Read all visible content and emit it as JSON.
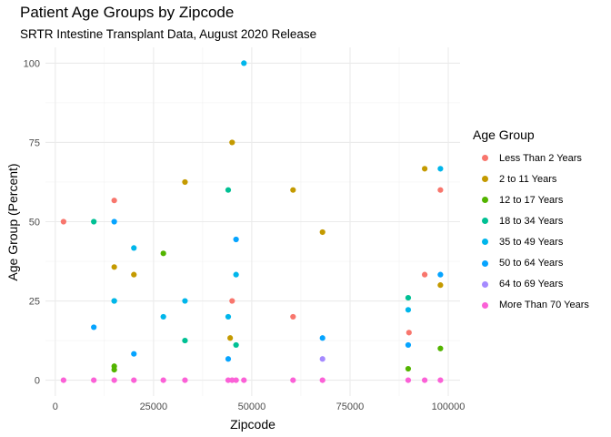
{
  "chart_data": {
    "type": "scatter",
    "title": "Patient Age Groups by Zipcode",
    "subtitle": "SRTR Intestine Transplant Data, August 2020 Release",
    "xlabel": "Zipcode",
    "ylabel": "Age Group (Percent)",
    "xlim": [
      0,
      100000
    ],
    "ylim": [
      0,
      100
    ],
    "x_ticks": [
      0,
      25000,
      50000,
      75000,
      100000
    ],
    "x_tick_labels": [
      "0",
      "25000",
      "50000",
      "75000",
      "100000"
    ],
    "y_ticks": [
      0,
      25,
      50,
      75,
      100
    ],
    "y_tick_labels": [
      "0",
      "25",
      "50",
      "75",
      "100"
    ],
    "grid": true,
    "legend_title": "Age Group",
    "legend_position": "right",
    "series": [
      {
        "name": "Less Than 2 Years",
        "color": "#F8766D",
        "points": [
          [
            2100,
            50
          ],
          [
            15000,
            56.7
          ],
          [
            45000,
            25
          ],
          [
            60500,
            20
          ],
          [
            90000,
            15
          ],
          [
            94000,
            33.3
          ],
          [
            98000,
            60
          ]
        ]
      },
      {
        "name": "2 to 11 Years",
        "color": "#C49A00",
        "points": [
          [
            15000,
            35.7
          ],
          [
            20000,
            33.3
          ],
          [
            33000,
            62.5
          ],
          [
            44500,
            13.3
          ],
          [
            45000,
            75
          ],
          [
            60500,
            60
          ],
          [
            68000,
            46.7
          ],
          [
            94000,
            66.7
          ],
          [
            98000,
            30
          ]
        ]
      },
      {
        "name": "12 to 17 Years",
        "color": "#53B400",
        "points": [
          [
            15000,
            3.3
          ],
          [
            15000,
            4.4
          ],
          [
            27500,
            40
          ],
          [
            89800,
            3.6
          ],
          [
            98000,
            10
          ]
        ]
      },
      {
        "name": "18 to 34 Years",
        "color": "#00C094",
        "points": [
          [
            9800,
            50
          ],
          [
            15000,
            25
          ],
          [
            33000,
            12.5
          ],
          [
            44000,
            60
          ],
          [
            46000,
            11.1
          ],
          [
            89800,
            26
          ]
        ]
      },
      {
        "name": "35 to 49 Years",
        "color": "#00B6EB",
        "points": [
          [
            15000,
            25
          ],
          [
            20000,
            41.7
          ],
          [
            27500,
            20
          ],
          [
            33000,
            25
          ],
          [
            44000,
            20
          ],
          [
            46000,
            33.3
          ],
          [
            48000,
            100
          ],
          [
            89800,
            22.2
          ],
          [
            98000,
            66.7
          ]
        ]
      },
      {
        "name": "50 to 64 Years",
        "color": "#06A4FF",
        "points": [
          [
            9800,
            16.7
          ],
          [
            15000,
            50
          ],
          [
            20000,
            8.3
          ],
          [
            44000,
            6.7
          ],
          [
            46000,
            44.4
          ],
          [
            68000,
            13.3
          ],
          [
            89800,
            11.1
          ],
          [
            98000,
            33.3
          ]
        ]
      },
      {
        "name": "64 to 69 Years",
        "color": "#A58AFF",
        "points": [
          [
            68000,
            6.7
          ]
        ]
      },
      {
        "name": "More Than 70 Years",
        "color": "#FB61D7",
        "points": [
          [
            2100,
            0
          ],
          [
            9800,
            0
          ],
          [
            15000,
            0
          ],
          [
            20000,
            0
          ],
          [
            27500,
            0
          ],
          [
            33000,
            0
          ],
          [
            44000,
            0
          ],
          [
            45000,
            0
          ],
          [
            46000,
            0
          ],
          [
            48000,
            0
          ],
          [
            60500,
            0
          ],
          [
            68000,
            0
          ],
          [
            89800,
            0
          ],
          [
            94000,
            0
          ],
          [
            98000,
            0
          ]
        ]
      }
    ]
  }
}
